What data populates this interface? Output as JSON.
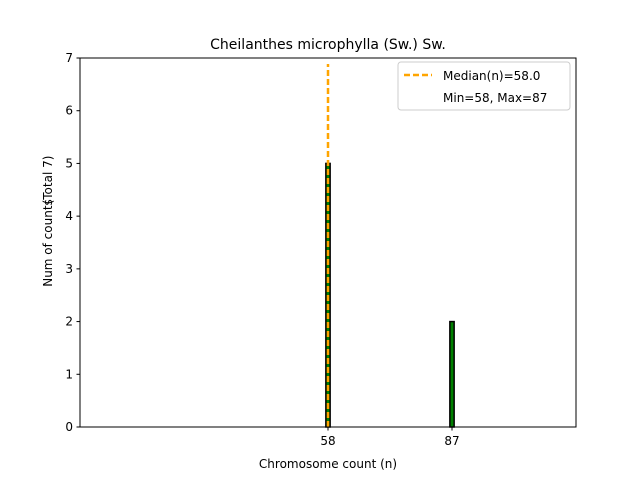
{
  "chart_data": {
    "type": "bar",
    "title": "Cheilanthes microphylla (Sw.) Sw.",
    "xlabel": "Chromosome count (n)",
    "ylabel": "Num of counts",
    "ylabel_total": "(Total 7)",
    "xlim": [
      0,
      116
    ],
    "ylim": [
      0,
      7
    ],
    "y_ticks": [
      0,
      1,
      2,
      3,
      4,
      5,
      6,
      7
    ],
    "x_ticks": [
      58,
      87
    ],
    "categories": [
      58,
      87
    ],
    "values": [
      5,
      2
    ],
    "bar_width": 1,
    "median": 58.0,
    "min": 58,
    "max": 87,
    "legend": {
      "location": "upper right",
      "median_label": "Median(n)=58.0",
      "range_label": "Min=58, Max=87"
    },
    "colors": {
      "bar_fill": "#008000",
      "bar_edge": "#000000",
      "median_line": "#FFA500"
    }
  }
}
